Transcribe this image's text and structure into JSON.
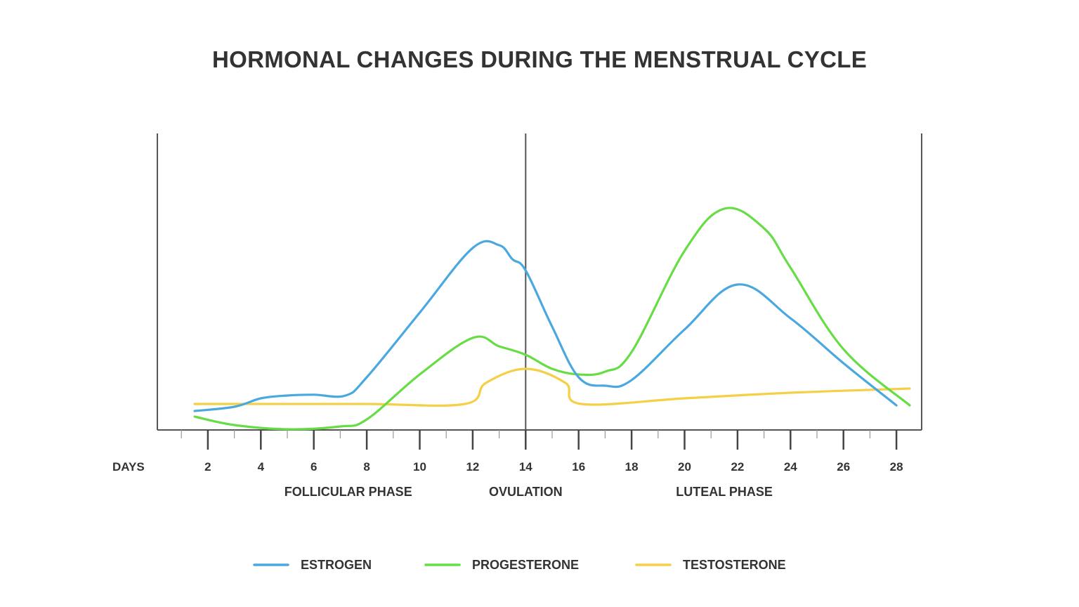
{
  "chart_data": {
    "type": "line",
    "title": "HORMONAL CHANGES DURING THE MENSTRUAL CYCLE",
    "xlabel": "DAYS",
    "ylabel": "",
    "xlim": [
      0,
      29
    ],
    "ylim": [
      0,
      100
    ],
    "x_ticks": [
      2,
      4,
      6,
      8,
      10,
      12,
      14,
      16,
      18,
      20,
      22,
      24,
      26,
      28
    ],
    "grid": false,
    "legend_position": "bottom",
    "phases": [
      {
        "label": "FOLLICULAR PHASE",
        "center_day": 7.3
      },
      {
        "label": "OVULATION",
        "center_day": 14
      },
      {
        "label": "LUTEAL PHASE",
        "center_day": 21.5
      }
    ],
    "divider_day": 14,
    "series": [
      {
        "name": "ESTROGEN",
        "color": "#4aa8e0",
        "x": [
          1.5,
          3,
          4,
          5,
          6,
          7.2,
          8,
          10,
          12,
          13,
          13.5,
          14,
          15,
          16,
          17,
          18,
          20,
          22,
          24,
          26,
          28
        ],
        "y": [
          15,
          16.5,
          19.5,
          20.5,
          20.8,
          20.5,
          27,
          50,
          73,
          74,
          69,
          65,
          45,
          27,
          24,
          26,
          44,
          60,
          48,
          32,
          17
        ]
      },
      {
        "name": "PROGESTERONE",
        "color": "#66dd44",
        "x": [
          1.5,
          3,
          5,
          7,
          8,
          10,
          12,
          13,
          14,
          15,
          16,
          17,
          18,
          20,
          21.5,
          23,
          24,
          26,
          28.5
        ],
        "y": [
          13,
          10,
          8.5,
          9.5,
          12,
          28,
          41,
          38,
          35,
          30,
          28,
          29,
          36,
          72,
          87,
          80,
          66,
          37,
          17
        ]
      },
      {
        "name": "TESTOSTERONE",
        "color": "#f5cf45",
        "x": [
          1.5,
          4,
          8,
          11.7,
          12.5,
          14,
          15.5,
          16.1,
          20,
          24,
          28.5
        ],
        "y": [
          17.5,
          17.5,
          17.5,
          17.5,
          25,
          30,
          25,
          17.5,
          19.5,
          21.5,
          23
        ]
      }
    ]
  }
}
